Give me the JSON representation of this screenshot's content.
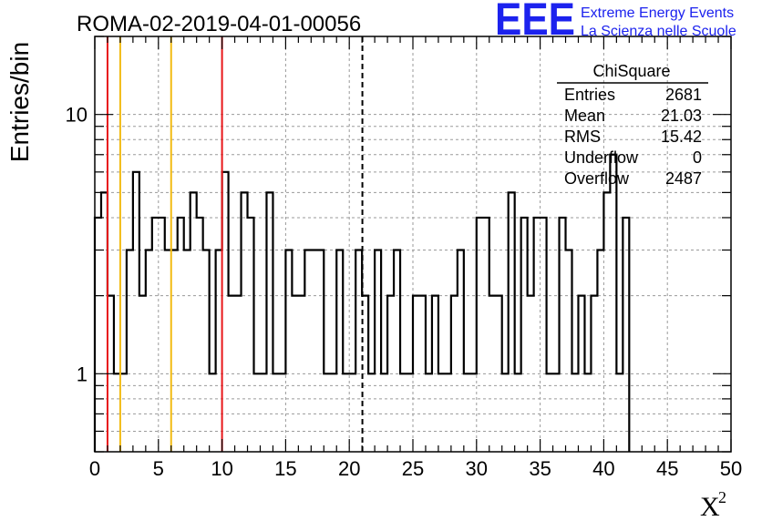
{
  "chart_data": {
    "type": "bar",
    "title": "ROMA-02-2019-04-01-00056",
    "xlabel": "X",
    "xlabel_superscript": "2",
    "ylabel": "Entries/bin",
    "xlim": [
      0,
      50
    ],
    "ylim": [
      0.5,
      20
    ],
    "yscale": "log",
    "grid": true,
    "bin_width": 0.5,
    "x_ticks": [
      "0",
      "5",
      "10",
      "15",
      "20",
      "25",
      "30",
      "35",
      "40",
      "45",
      "50"
    ],
    "y_ticks": [
      "1",
      "10"
    ],
    "values": [
      4,
      5,
      2,
      1,
      1,
      3,
      6,
      2,
      3,
      4,
      4,
      3,
      3,
      4,
      3,
      5,
      4,
      3,
      1,
      3,
      6,
      2,
      2,
      5,
      4,
      1,
      1,
      5,
      1,
      1,
      3,
      2,
      2,
      3,
      3,
      3,
      1,
      1,
      3,
      1,
      1,
      3,
      2,
      1,
      3,
      1,
      2,
      3,
      1,
      1,
      2,
      2,
      1,
      2,
      1,
      1,
      2,
      3,
      1,
      1,
      4,
      4,
      2,
      2,
      1,
      5,
      1,
      4,
      2,
      4,
      4,
      1,
      1,
      4,
      3,
      1,
      2,
      1,
      2,
      3,
      5,
      7,
      1,
      4
    ],
    "vertical_lines": [
      {
        "x": 1,
        "color": "#e8171a",
        "style": "solid"
      },
      {
        "x": 2,
        "color": "#f2bb14",
        "style": "solid"
      },
      {
        "x": 6,
        "color": "#f2bb14",
        "style": "solid"
      },
      {
        "x": 10,
        "color": "#e8171a",
        "style": "solid"
      },
      {
        "x": 21.03,
        "color": "#000000",
        "style": "dashed"
      }
    ],
    "stats": {
      "title": "ChiSquare",
      "rows": [
        {
          "label": "Entries",
          "value": "2681"
        },
        {
          "label": "Mean",
          "value": "21.03"
        },
        {
          "label": "RMS",
          "value": "15.42"
        },
        {
          "label": "Underflow",
          "value": "0"
        },
        {
          "label": "Overflow",
          "value": "2487"
        }
      ]
    }
  },
  "logo": {
    "text": "EEE",
    "line1": "Extreme Energy Events",
    "line2": "La Scienza nelle Scuole",
    "color": "#1c22ee"
  }
}
